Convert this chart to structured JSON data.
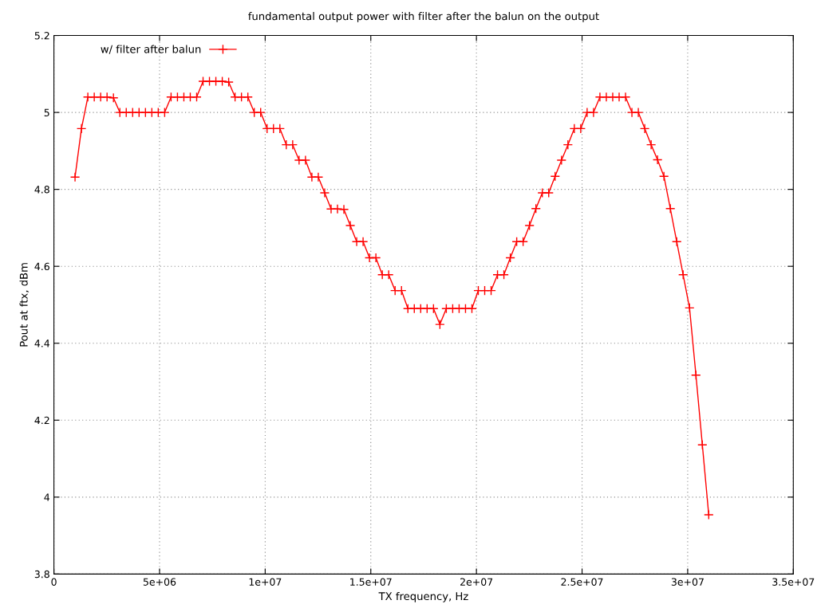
{
  "chart_data": {
    "type": "line",
    "title": "fundamental output power with filter after the balun on the output",
    "xlabel": "TX frequency, Hz",
    "ylabel": "Pout at ftx, dBm",
    "x": [
      1000000,
      1303000,
      1606000,
      1909000,
      2212000,
      2515000,
      2818000,
      3121000,
      3424000,
      3727000,
      4030000,
      4333000,
      4636000,
      4939000,
      5242000,
      5545000,
      5848000,
      6151000,
      6454000,
      6757000,
      7060000,
      7363000,
      7666000,
      7969000,
      8272000,
      8575000,
      8878000,
      9181000,
      9484000,
      9787000,
      10090000,
      10393000,
      10696000,
      10999000,
      11302000,
      11605000,
      11908000,
      12211000,
      12514000,
      12817000,
      13120000,
      13423000,
      13726000,
      14029000,
      14332000,
      14635000,
      14938000,
      15241000,
      15544000,
      15847000,
      16150000,
      16453000,
      16756000,
      17059000,
      17362000,
      17665000,
      17968000,
      18271000,
      18574000,
      18877000,
      19180000,
      19483000,
      19786000,
      20089000,
      20392000,
      20695000,
      20998000,
      21301000,
      21604000,
      21907000,
      22210000,
      22513000,
      22816000,
      23119000,
      23422000,
      23725000,
      24028000,
      24331000,
      24634000,
      24937000,
      25240000,
      25543000,
      25846000,
      26149000,
      26452000,
      26755000,
      27058000,
      27361000,
      27664000,
      27967000,
      28270000,
      28573000,
      28876000,
      29179000,
      29482000,
      29785000,
      30088000,
      30391000,
      30694000,
      30997000
    ],
    "series": [
      {
        "name": "w/ filter after balun",
        "color": "#ff0000",
        "values": [
          4.832,
          4.958,
          5.04,
          5.04,
          5.04,
          5.04,
          5.038,
          5.0,
          5.0,
          5.0,
          5.0,
          5.0,
          5.0,
          5.0,
          5.0,
          5.04,
          5.04,
          5.04,
          5.04,
          5.04,
          5.081,
          5.081,
          5.081,
          5.081,
          5.079,
          5.04,
          5.04,
          5.04,
          5.0,
          5.0,
          4.958,
          4.958,
          4.958,
          4.916,
          4.916,
          4.876,
          4.876,
          4.832,
          4.832,
          4.791,
          4.749,
          4.749,
          4.748,
          4.706,
          4.664,
          4.664,
          4.622,
          4.622,
          4.578,
          4.578,
          4.537,
          4.537,
          4.49,
          4.49,
          4.49,
          4.49,
          4.49,
          4.449,
          4.49,
          4.49,
          4.49,
          4.49,
          4.49,
          4.537,
          4.537,
          4.537,
          4.578,
          4.578,
          4.622,
          4.664,
          4.664,
          4.706,
          4.75,
          4.791,
          4.791,
          4.834,
          4.876,
          4.916,
          4.958,
          4.958,
          5.0,
          5.0,
          5.04,
          5.04,
          5.04,
          5.04,
          5.04,
          5.0,
          5.0,
          4.958,
          4.916,
          4.877,
          4.834,
          4.75,
          4.664,
          4.578,
          4.492,
          4.317,
          4.136,
          3.954
        ]
      }
    ],
    "xlim": [
      0,
      35000000
    ],
    "xticks": [
      {
        "value": 0,
        "label": "0"
      },
      {
        "value": 5000000,
        "label": "5e+06"
      },
      {
        "value": 10000000,
        "label": "1e+07"
      },
      {
        "value": 15000000,
        "label": "1.5e+07"
      },
      {
        "value": 20000000,
        "label": "2e+07"
      },
      {
        "value": 25000000,
        "label": "2.5e+07"
      },
      {
        "value": 30000000,
        "label": "3e+07"
      },
      {
        "value": 35000000,
        "label": "3.5e+07"
      }
    ],
    "ylim": [
      3.8,
      5.2
    ],
    "yticks": [
      3.8,
      4,
      4.2,
      4.4,
      4.6,
      4.8,
      5,
      5.2
    ],
    "grid": true,
    "legend": "top left",
    "marker": "cross",
    "line_style": "solid"
  }
}
